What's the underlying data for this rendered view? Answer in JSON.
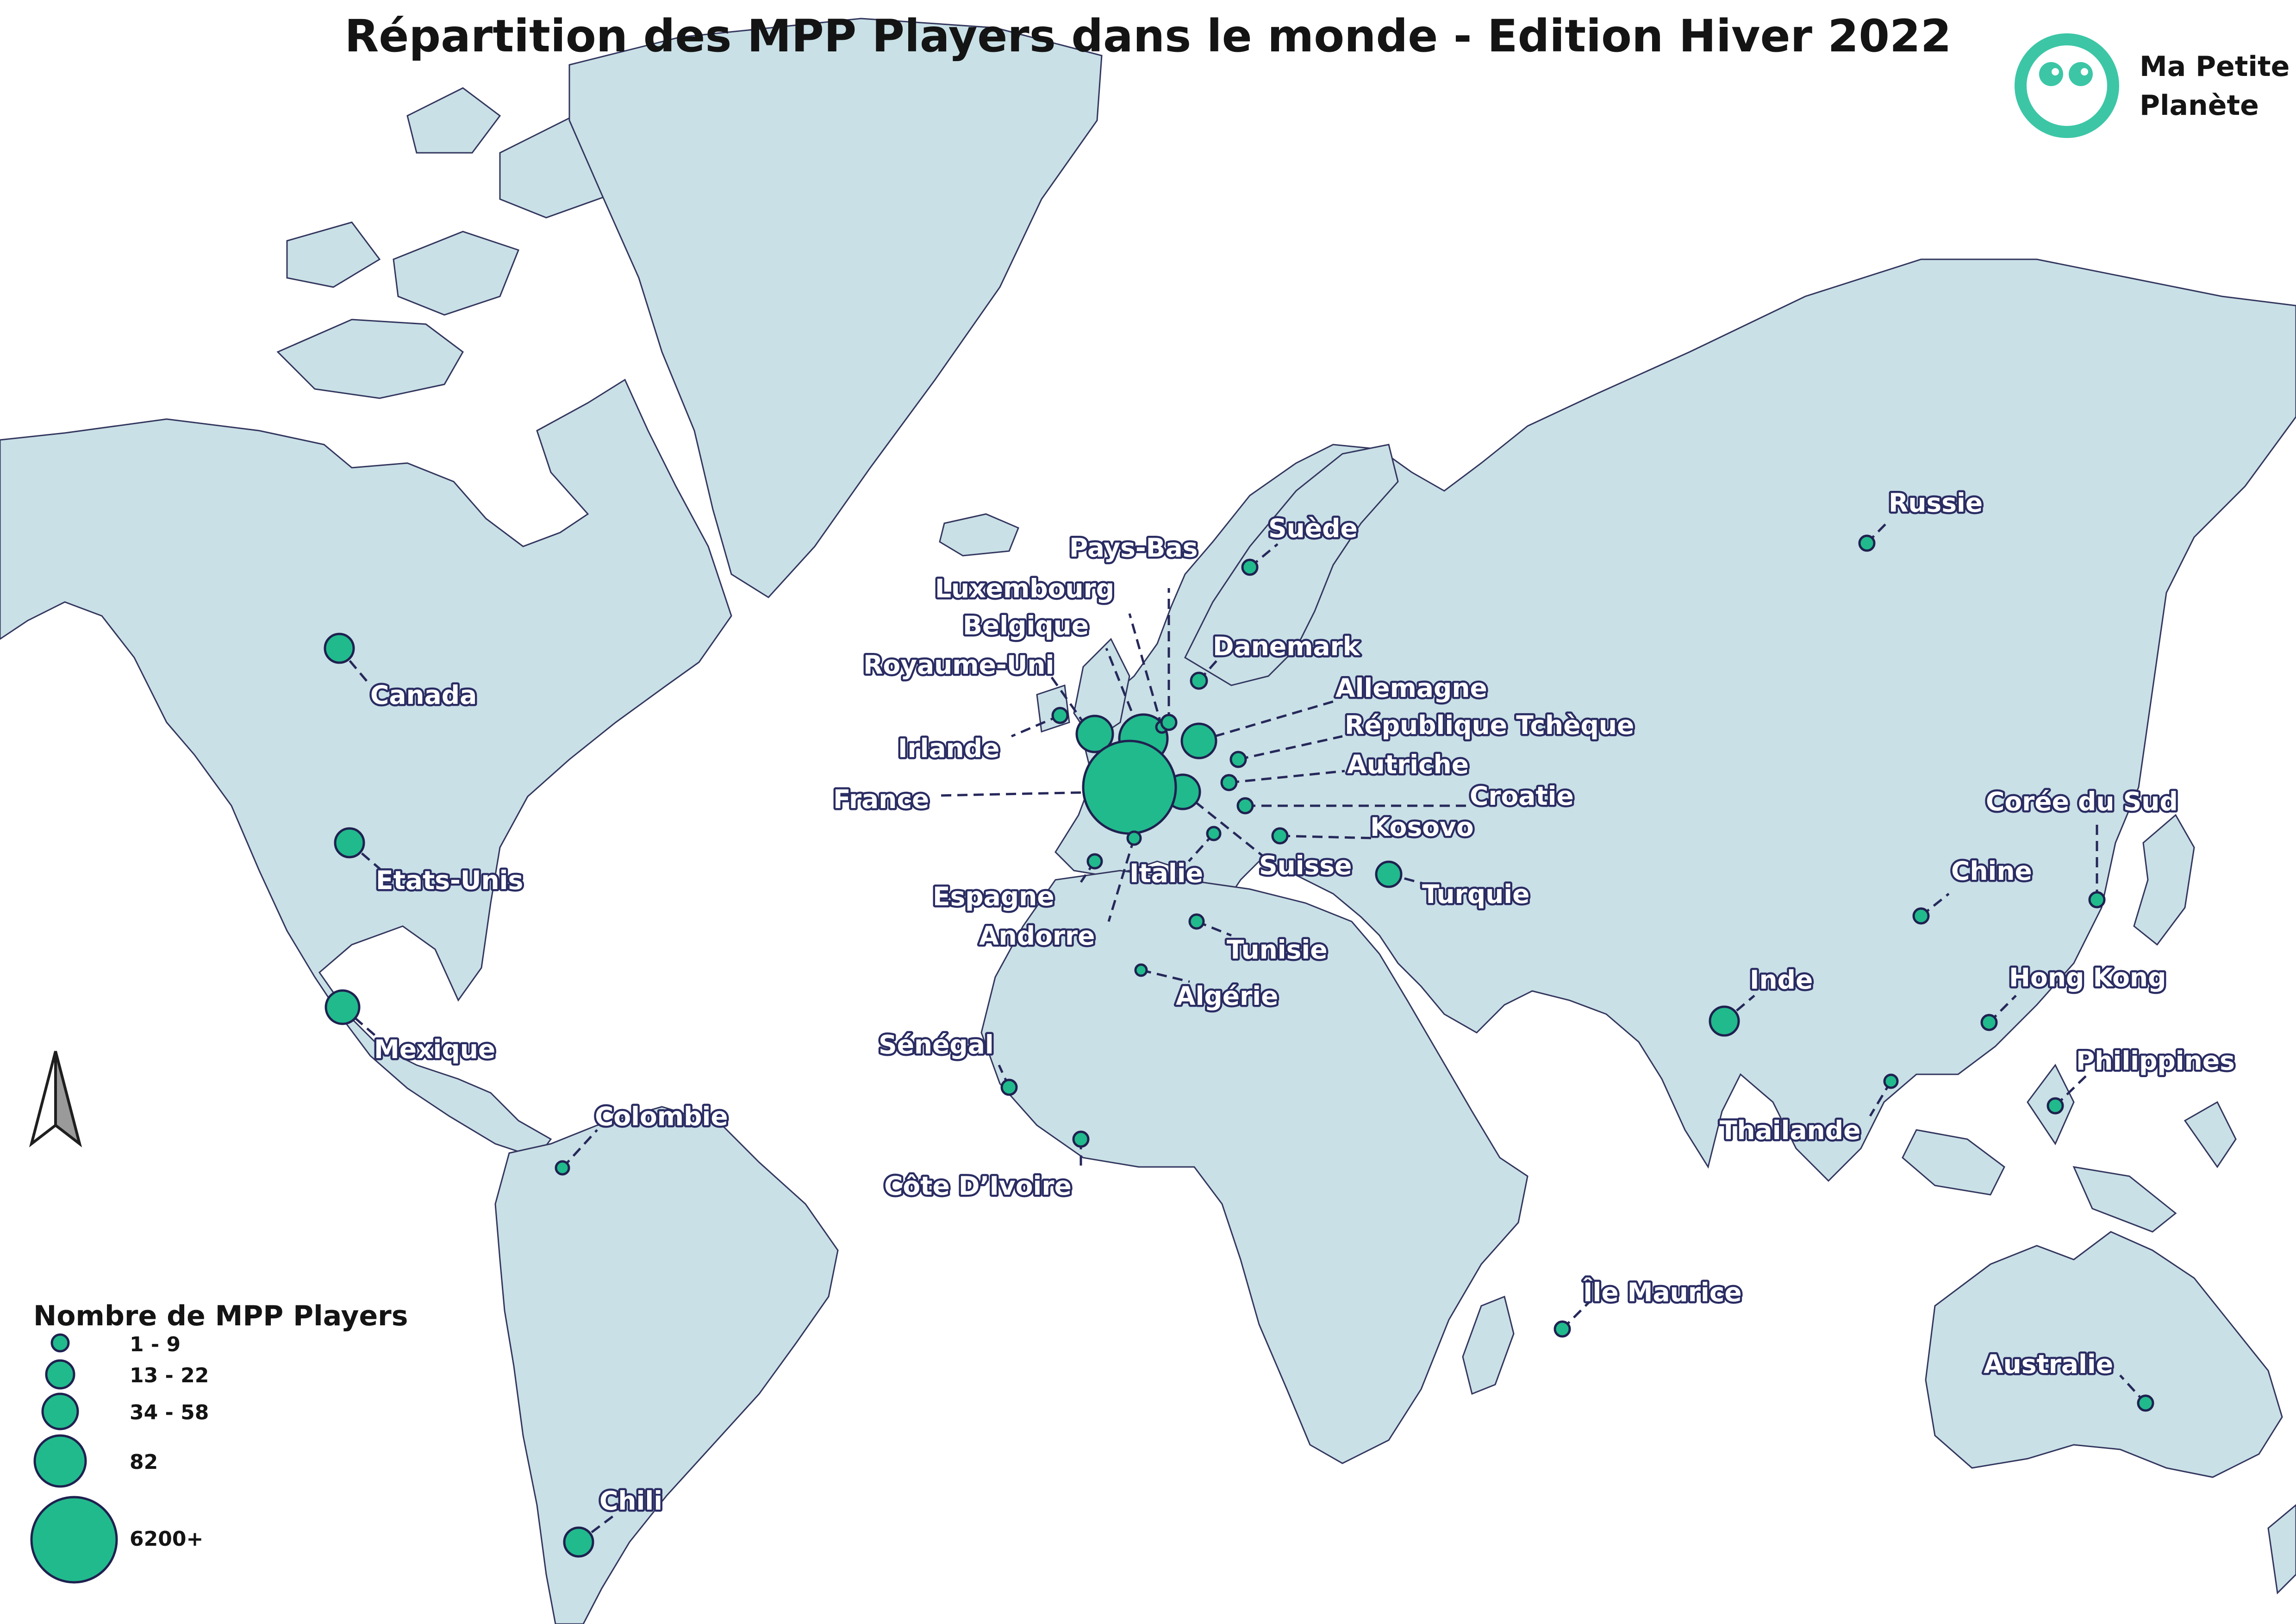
{
  "title": "Répartition des MPP Players dans le monde - Edition Hiver 2022",
  "logo": {
    "line1": "Ma Petite",
    "line2": "Planète",
    "color": "#3cc6a6"
  },
  "icons": {
    "north_arrow": "north-arrow-icon",
    "logo": "ma-petite-planete-logo-icon"
  },
  "colors": {
    "land": "#c9e0e6",
    "border": "#33365e",
    "marker": "#21ba8c",
    "marker_stroke": "#1f2150",
    "label_outline": "#2a2c63",
    "water": "#ffffff"
  },
  "legend": {
    "title": "Nombre de MPP Players",
    "classes": [
      {
        "label": "1 - 9"
      },
      {
        "label": "13 - 22"
      },
      {
        "label": "34 - 58"
      },
      {
        "label": "82"
      },
      {
        "label": "6200+"
      }
    ]
  },
  "countries": [
    {
      "name": "Canada",
      "class": "34 - 58"
    },
    {
      "name": "Etats-Unis",
      "class": "34 - 58"
    },
    {
      "name": "Mexique",
      "class": "34 - 58"
    },
    {
      "name": "Colombie",
      "class": "1 - 9"
    },
    {
      "name": "Chili",
      "class": "34 - 58"
    },
    {
      "name": "Irlande",
      "class": "1 - 9"
    },
    {
      "name": "Royaume-Uni",
      "class": "82"
    },
    {
      "name": "Belgique",
      "class": "82"
    },
    {
      "name": "Luxembourg",
      "class": "1 - 9"
    },
    {
      "name": "Pays-Bas",
      "class": "1 - 9"
    },
    {
      "name": "Suède",
      "class": "1 - 9"
    },
    {
      "name": "Danemark",
      "class": "1 - 9"
    },
    {
      "name": "Allemagne",
      "class": "34 - 58"
    },
    {
      "name": "République Tchèque",
      "class": "1 - 9"
    },
    {
      "name": "Autriche",
      "class": "1 - 9"
    },
    {
      "name": "Croatie",
      "class": "1 - 9"
    },
    {
      "name": "Kosovo",
      "class": "1 - 9"
    },
    {
      "name": "Suisse",
      "class": "34 - 58"
    },
    {
      "name": "France",
      "class": "6200+"
    },
    {
      "name": "Espagne",
      "class": "1 - 9"
    },
    {
      "name": "Andorre",
      "class": "1 - 9"
    },
    {
      "name": "Italie",
      "class": "1 - 9"
    },
    {
      "name": "Tunisie",
      "class": "1 - 9"
    },
    {
      "name": "Algérie",
      "class": "1 - 9"
    },
    {
      "name": "Sénégal",
      "class": "1 - 9"
    },
    {
      "name": "Côte D’Ivoire",
      "class": "1 - 9"
    },
    {
      "name": "Turquie",
      "class": "13 - 22"
    },
    {
      "name": "Russie",
      "class": "1 - 9"
    },
    {
      "name": "Inde",
      "class": "34 - 58"
    },
    {
      "name": "Chine",
      "class": "1 - 9"
    },
    {
      "name": "Corée du Sud",
      "class": "1 - 9"
    },
    {
      "name": "Hong Kong",
      "class": "1 - 9"
    },
    {
      "name": "Thailande",
      "class": "1 - 9"
    },
    {
      "name": "Philippines",
      "class": "1 - 9"
    },
    {
      "name": "Île Maurice",
      "class": "1 - 9"
    },
    {
      "name": "Australie",
      "class": "1 - 9"
    }
  ]
}
